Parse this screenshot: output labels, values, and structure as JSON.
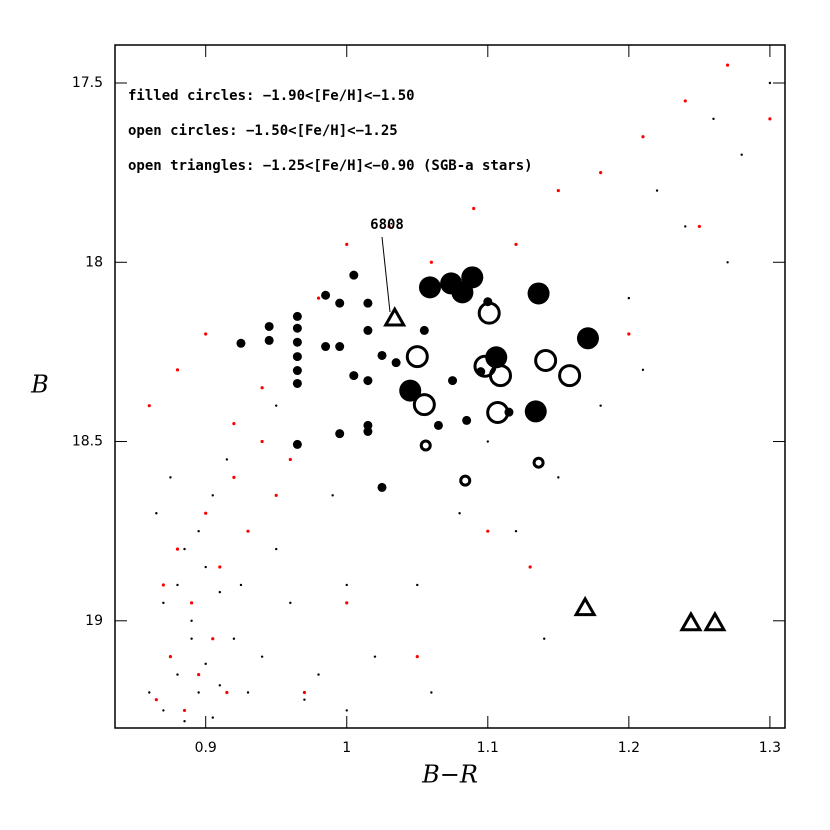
{
  "chart_data": {
    "type": "scatter",
    "x_label": "B−R",
    "y_label": "B",
    "xlim": [
      0.8357,
      1.3107
    ],
    "ylim": [
      19.299,
      17.394
    ],
    "xticks": [
      0.9,
      1,
      1.1,
      1.2,
      1.3
    ],
    "yticks": [
      17.5,
      18,
      18.5,
      19
    ],
    "annotations": [
      "filled circles: −1.90<[Fe/H]<−1.50",
      "open circles: −1.50<[Fe/H]<−1.25",
      "open triangles: −1.25<[Fe/H]<−0.90 (SGB-a stars)"
    ],
    "label_6808": "6808",
    "series": [
      {
        "marker": "dot",
        "color": "#000000",
        "size": 1.2,
        "x": [
          0.86,
          0.87,
          0.875,
          0.88,
          0.885,
          0.89,
          0.895,
          0.9,
          0.905,
          0.91,
          0.87,
          0.88,
          0.89,
          0.9,
          0.91,
          0.92,
          0.93,
          0.865,
          0.875,
          0.885,
          0.895,
          0.905,
          0.915,
          0.925,
          0.94,
          0.95,
          0.96,
          0.97,
          0.98,
          1.0,
          1.02,
          1.05,
          1.08,
          1.12,
          1.15,
          1.18,
          1.2,
          1.22,
          1.24,
          1.26,
          1.28,
          1.3,
          1.1,
          1.0,
          0.95,
          1.06,
          1.14,
          1.21,
          1.27,
          0.99
        ],
        "y": [
          19.2,
          19.25,
          19.1,
          19.15,
          19.28,
          19.05,
          19.2,
          19.12,
          19.27,
          19.18,
          18.95,
          18.9,
          19.0,
          18.85,
          18.92,
          19.05,
          19.2,
          18.7,
          18.6,
          18.8,
          18.75,
          18.65,
          18.55,
          18.9,
          19.1,
          18.8,
          18.95,
          19.22,
          19.15,
          19.25,
          19.1,
          18.9,
          18.7,
          18.75,
          18.6,
          18.4,
          18.1,
          17.8,
          17.9,
          17.6,
          17.7,
          17.5,
          18.5,
          18.9,
          18.4,
          19.2,
          19.05,
          18.3,
          18.0,
          18.65
        ]
      },
      {
        "marker": "dot",
        "color": "#ff0000",
        "size": 1.6,
        "x": [
          0.865,
          0.875,
          0.885,
          0.895,
          0.905,
          0.915,
          0.87,
          0.88,
          0.89,
          0.9,
          0.91,
          0.92,
          0.93,
          0.94,
          0.95,
          0.86,
          0.88,
          0.9,
          0.92,
          0.94,
          0.96,
          0.98,
          1.0,
          1.03,
          1.06,
          1.09,
          1.12,
          1.15,
          1.18,
          1.21,
          1.24,
          1.27,
          1.3,
          1.1,
          1.0,
          0.97,
          1.05,
          1.13,
          1.2,
          1.25
        ],
        "y": [
          19.22,
          19.1,
          19.25,
          19.15,
          19.05,
          19.2,
          18.9,
          18.8,
          18.95,
          18.7,
          18.85,
          18.6,
          18.75,
          18.5,
          18.65,
          18.4,
          18.3,
          18.2,
          18.45,
          18.35,
          18.55,
          18.1,
          17.95,
          17.9,
          18.0,
          17.85,
          17.95,
          17.8,
          17.75,
          17.65,
          17.55,
          17.45,
          17.6,
          18.75,
          18.95,
          19.2,
          19.1,
          18.85,
          18.2,
          17.9
        ]
      },
      {
        "marker": "filled-circle",
        "color": "#000000",
        "size": 11,
        "x": [
          1.059,
          1.074,
          1.082,
          1.136,
          1.171,
          1.045,
          1.106,
          1.134,
          1.089
        ],
        "y": [
          18.07,
          18.059,
          18.084,
          18.087,
          18.212,
          18.358,
          18.265,
          18.416,
          18.042
        ]
      },
      {
        "marker": "filled-circle",
        "color": "#000000",
        "size": 4.5,
        "x": [
          0.925,
          0.945,
          0.945,
          0.965,
          0.965,
          0.965,
          0.965,
          0.965,
          0.965,
          0.985,
          0.985,
          0.995,
          0.995,
          1.005,
          1.015,
          1.015,
          1.025,
          1.015,
          1.005,
          0.965,
          0.995,
          1.015,
          1.015,
          1.025,
          1.055,
          1.035,
          1.065,
          1.085,
          1.075,
          1.095,
          1.115,
          1.1
        ],
        "y": [
          18.226,
          18.179,
          18.218,
          18.151,
          18.184,
          18.223,
          18.263,
          18.302,
          18.338,
          18.092,
          18.235,
          18.114,
          18.235,
          18.036,
          18.114,
          18.19,
          18.26,
          18.33,
          18.316,
          18.508,
          18.478,
          18.455,
          18.472,
          18.628,
          18.19,
          18.28,
          18.455,
          18.441,
          18.33,
          18.305,
          18.418,
          18.11
        ]
      },
      {
        "marker": "open-circle",
        "color": "#000000",
        "size": 10,
        "x": [
          1.05,
          1.055,
          1.101,
          1.098,
          1.109,
          1.107,
          1.141,
          1.158
        ],
        "y": [
          18.263,
          18.397,
          18.142,
          18.29,
          18.316,
          18.419,
          18.274,
          18.316
        ]
      },
      {
        "marker": "open-circle",
        "color": "#000000",
        "size": 4.5,
        "x": [
          1.056,
          1.084,
          1.136
        ],
        "y": [
          18.511,
          18.609,
          18.559
        ]
      },
      {
        "marker": "triangle",
        "color": "#000000",
        "size": 9,
        "x": [
          1.034,
          1.169,
          1.244,
          1.261
        ],
        "y": [
          18.156,
          18.964,
          19.006,
          19.006
        ]
      }
    ]
  }
}
